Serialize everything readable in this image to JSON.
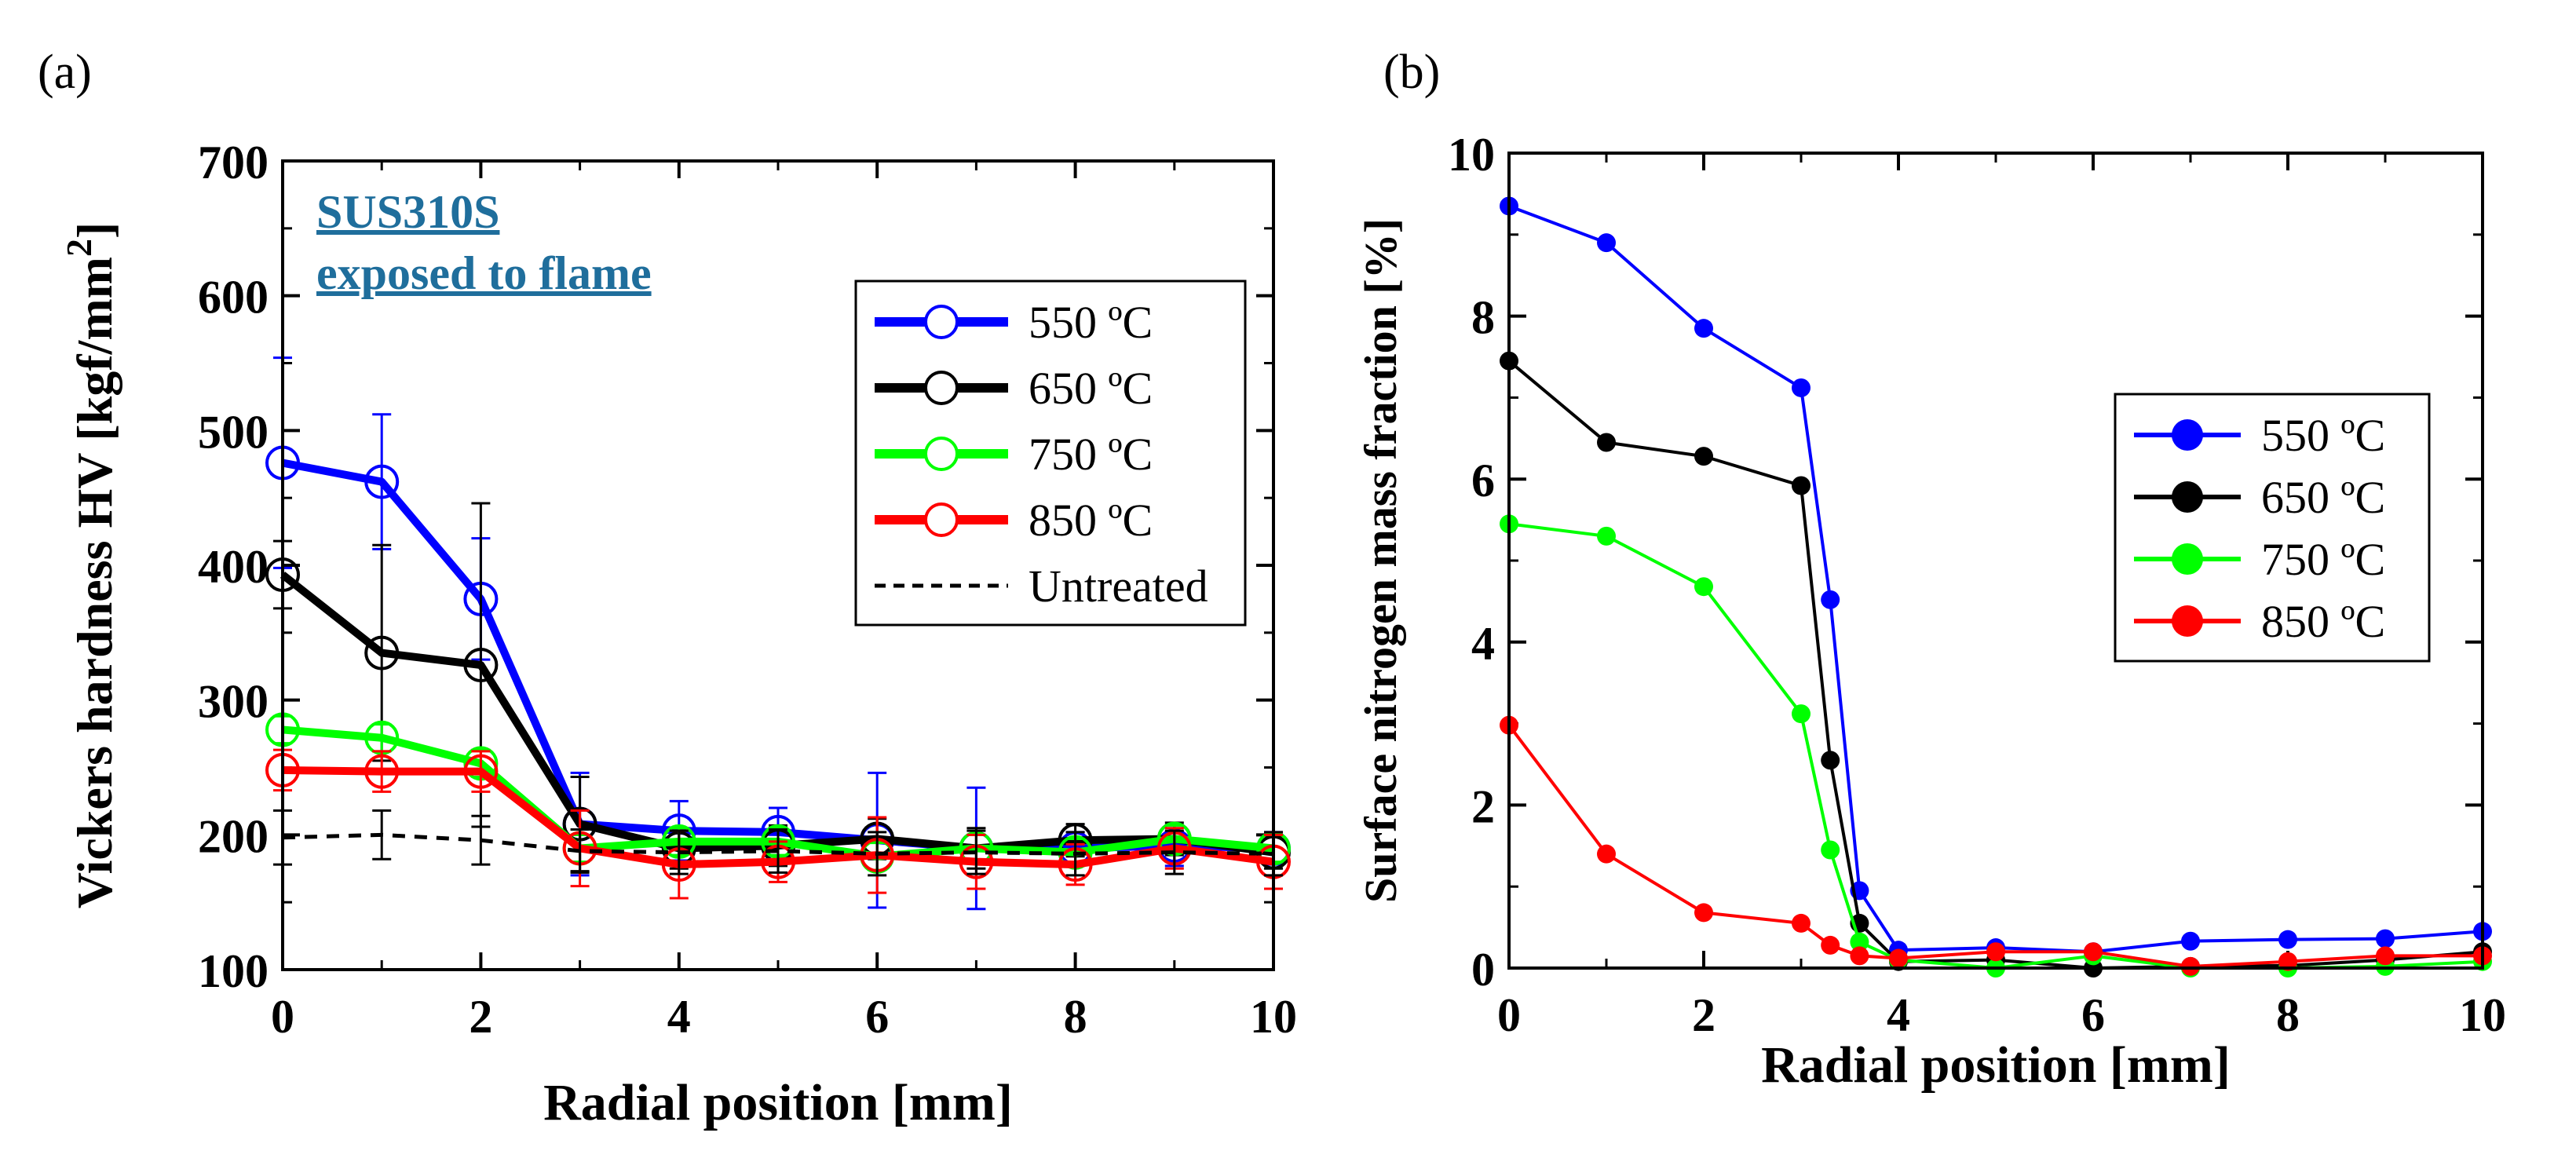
{
  "chart_data": [
    {
      "panel_label": "(a)",
      "type": "line",
      "title": "",
      "annotation": [
        "SUS310S",
        "exposed to flame"
      ],
      "xlabel": "Radial position [mm]",
      "ylabel_main": "Vickers hardness HV [kgf/mm",
      "ylabel_sup": "2",
      "ylabel_end": "]",
      "xlim": [
        0,
        10
      ],
      "ylim": [
        100,
        700
      ],
      "xticks": [
        "0",
        "2",
        "4",
        "6",
        "8",
        "10"
      ],
      "yticks": [
        "100",
        "200",
        "300",
        "400",
        "500",
        "600",
        "700"
      ],
      "legend_position": "center-right",
      "x": [
        0,
        1,
        2,
        3,
        4,
        5,
        6,
        7,
        8,
        9,
        10
      ],
      "series": [
        {
          "name": "550 ºC",
          "color": "#0000ff",
          "values": [
            476,
            462,
            375,
            208,
            203,
            202,
            196,
            190,
            190,
            192,
            190
          ],
          "err": [
            78,
            50,
            45,
            38,
            22,
            18,
            50,
            45,
            12,
            15,
            12
          ]
        },
        {
          "name": "650 ºC",
          "color": "#000000",
          "values": [
            393,
            335,
            326,
            208,
            190,
            192,
            197,
            190,
            196,
            197,
            187
          ],
          "err": [
            25,
            80,
            120,
            35,
            15,
            15,
            15,
            15,
            12,
            12,
            12
          ]
        },
        {
          "name": "750 ºC",
          "color": "#00ff00",
          "values": [
            278,
            272,
            253,
            190,
            195,
            195,
            184,
            190,
            187,
            197,
            190
          ],
          "err": [
            10,
            10,
            10,
            10,
            10,
            10,
            10,
            10,
            10,
            10,
            10
          ]
        },
        {
          "name": "850 ºC",
          "color": "#ff0000",
          "values": [
            248,
            247,
            247,
            190,
            178,
            180,
            185,
            180,
            178,
            190,
            180
          ],
          "err": [
            15,
            15,
            15,
            28,
            25,
            15,
            28,
            20,
            15,
            15,
            20
          ]
        },
        {
          "name": "Untreated",
          "color": "#000000",
          "dashed": true,
          "x": [
            0,
            1,
            2,
            3,
            4,
            5,
            6,
            7,
            8,
            9,
            10
          ],
          "values": [
            198,
            200,
            196,
            188,
            187,
            188,
            186,
            187,
            186,
            187,
            186
          ],
          "err": [
            20,
            18,
            18,
            16,
            16,
            16,
            16,
            16,
            16,
            16,
            16
          ]
        }
      ]
    },
    {
      "panel_label": "(b)",
      "type": "line",
      "title": "",
      "xlabel": "Radial position [mm]",
      "ylabel": "Surface nitrogen mass fraction [%]",
      "xlim": [
        0,
        10
      ],
      "ylim": [
        0,
        10
      ],
      "xticks": [
        "0",
        "2",
        "4",
        "6",
        "8",
        "10"
      ],
      "yticks": [
        "0",
        "2",
        "4",
        "6",
        "8",
        "10"
      ],
      "legend_position": "center-right",
      "series": [
        {
          "name": "550 ºC",
          "color": "#0000ff",
          "x": [
            0,
            1,
            2,
            3,
            3.3,
            3.6,
            4,
            5,
            6,
            7,
            8,
            9,
            10
          ],
          "values": [
            9.35,
            8.9,
            7.85,
            7.12,
            4.52,
            0.95,
            0.22,
            0.25,
            0.2,
            0.33,
            0.35,
            0.36,
            0.45
          ]
        },
        {
          "name": "650 ºC",
          "color": "#000000",
          "x": [
            0,
            1,
            2,
            3,
            3.3,
            3.6,
            4,
            5,
            6,
            7,
            8,
            9,
            10
          ],
          "values": [
            7.45,
            6.45,
            6.28,
            5.92,
            2.55,
            0.55,
            0.08,
            0.1,
            0.0,
            0.02,
            0.03,
            0.1,
            0.2
          ]
        },
        {
          "name": "750 ºC",
          "color": "#00ff00",
          "x": [
            0,
            1,
            2,
            3,
            3.3,
            3.6,
            4,
            5,
            6,
            7,
            8,
            9,
            10
          ],
          "values": [
            5.45,
            5.3,
            4.68,
            3.12,
            1.45,
            0.32,
            0.1,
            0.0,
            0.15,
            0.0,
            0.0,
            0.02,
            0.08
          ]
        },
        {
          "name": "850 ºC",
          "color": "#ff0000",
          "x": [
            0,
            1,
            2,
            3,
            3.3,
            3.6,
            4,
            5,
            6,
            7,
            8,
            9,
            10
          ],
          "values": [
            2.98,
            1.4,
            0.68,
            0.55,
            0.28,
            0.15,
            0.12,
            0.2,
            0.2,
            0.02,
            0.08,
            0.15,
            0.15
          ]
        }
      ]
    }
  ]
}
